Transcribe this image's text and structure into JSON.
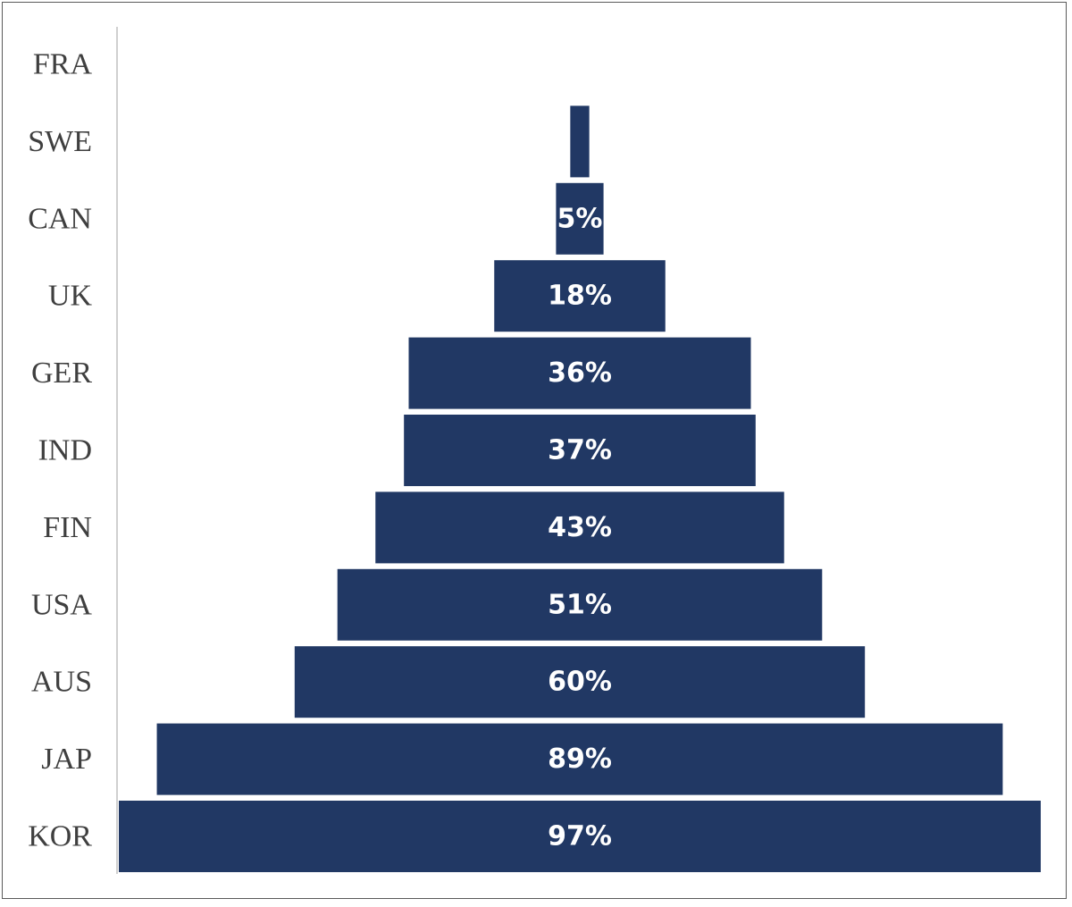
{
  "colors": {
    "bar": "#213864",
    "axis": "#d0d0d0",
    "label_text": "#3f3f3f",
    "value_text": "#ffffff"
  },
  "chart_data": {
    "type": "bar",
    "orientation": "horizontal",
    "layout_style": "centered",
    "categories": [
      "FRA",
      "SWE",
      "CAN",
      "UK",
      "GER",
      "IND",
      "FIN",
      "USA",
      "AUS",
      "JAP",
      "KOR"
    ],
    "values": [
      0,
      2,
      5,
      18,
      36,
      37,
      43,
      51,
      60,
      89,
      97
    ],
    "value_labels": [
      "",
      "",
      "5%",
      "18%",
      "36%",
      "37%",
      "43%",
      "51%",
      "60%",
      "89%",
      "97%"
    ],
    "unit": "%",
    "title": "",
    "xlabel": "",
    "ylabel": "",
    "xlim": [
      0,
      97
    ],
    "grid": false,
    "legend": "none"
  }
}
